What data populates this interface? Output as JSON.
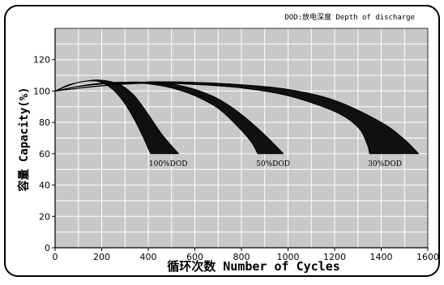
{
  "chart_data": {
    "type": "area",
    "note": "DOD:放电深度 Depth of discharge",
    "xlabel": "循环次数 Number of Cycles",
    "ylabel": "容量 Capacity(%)",
    "xlim": [
      0,
      1600
    ],
    "ylim": [
      0,
      140
    ],
    "x_ticks": [
      0,
      200,
      400,
      600,
      800,
      1000,
      1200,
      1400,
      1600
    ],
    "y_ticks": [
      0,
      20,
      40,
      60,
      80,
      100,
      120
    ],
    "grid": true,
    "background_color": "#c8c8c8",
    "band_color": "#000000",
    "series": [
      {
        "name": "100%DOD",
        "upper": [
          [
            0,
            100
          ],
          [
            60,
            104
          ],
          [
            120,
            106
          ],
          [
            170,
            107
          ],
          [
            220,
            106.5
          ],
          [
            280,
            104
          ],
          [
            340,
            97
          ],
          [
            400,
            85
          ],
          [
            460,
            72
          ],
          [
            530,
            60
          ]
        ],
        "lower": [
          [
            0,
            100
          ],
          [
            50,
            103
          ],
          [
            100,
            105.5
          ],
          [
            150,
            106.5
          ],
          [
            190,
            106
          ],
          [
            240,
            102
          ],
          [
            290,
            94
          ],
          [
            340,
            82
          ],
          [
            380,
            70
          ],
          [
            410,
            60
          ]
        ]
      },
      {
        "name": "50%DOD",
        "upper": [
          [
            0,
            100
          ],
          [
            100,
            103
          ],
          [
            200,
            105
          ],
          [
            300,
            105.7
          ],
          [
            400,
            105.6
          ],
          [
            500,
            104.5
          ],
          [
            600,
            101
          ],
          [
            700,
            95
          ],
          [
            800,
            85
          ],
          [
            900,
            72
          ],
          [
            980,
            60
          ]
        ],
        "lower": [
          [
            0,
            100
          ],
          [
            100,
            102.8
          ],
          [
            200,
            104.5
          ],
          [
            300,
            105.2
          ],
          [
            400,
            104.6
          ],
          [
            500,
            102
          ],
          [
            600,
            97
          ],
          [
            700,
            89
          ],
          [
            780,
            78
          ],
          [
            840,
            68
          ],
          [
            870,
            60
          ]
        ]
      },
      {
        "name": "30%DOD",
        "upper": [
          [
            0,
            100
          ],
          [
            200,
            103.5
          ],
          [
            400,
            105.8
          ],
          [
            600,
            105.5
          ],
          [
            800,
            104
          ],
          [
            1000,
            101
          ],
          [
            1200,
            94
          ],
          [
            1400,
            80
          ],
          [
            1500,
            69
          ],
          [
            1560,
            60
          ]
        ],
        "lower": [
          [
            0,
            100
          ],
          [
            200,
            103.3
          ],
          [
            400,
            105
          ],
          [
            600,
            104.2
          ],
          [
            800,
            102
          ],
          [
            1000,
            97
          ],
          [
            1200,
            87
          ],
          [
            1300,
            77
          ],
          [
            1340,
            66
          ],
          [
            1350,
            60
          ]
        ]
      }
    ],
    "band_labels": [
      {
        "text": "100%DOD",
        "x": 410,
        "y": 60
      },
      {
        "text": "50%DOD",
        "x": 870,
        "y": 60
      },
      {
        "text": "30%DOD",
        "x": 1350,
        "y": 60
      }
    ]
  }
}
